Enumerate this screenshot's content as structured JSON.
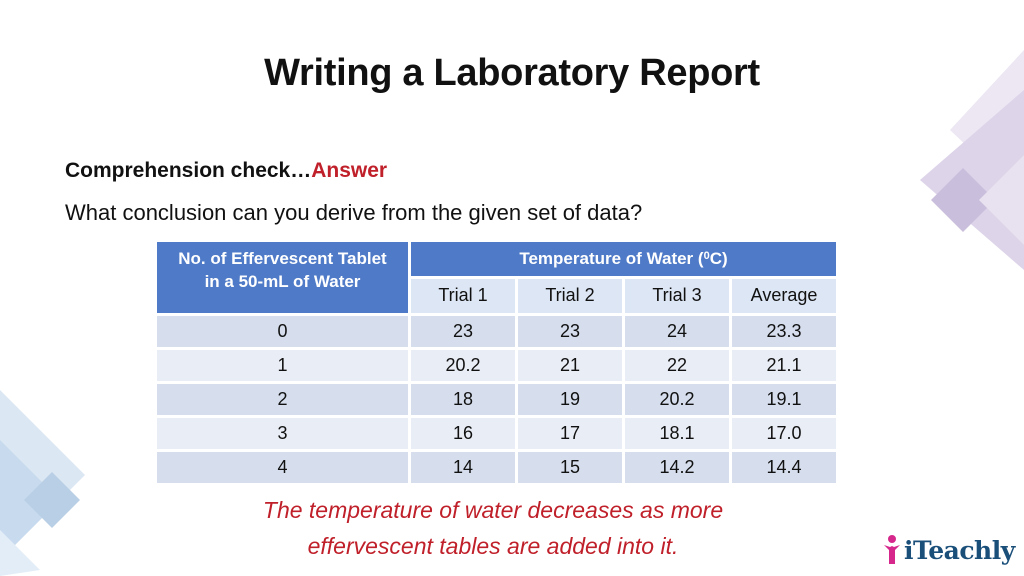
{
  "title": "Writing a Laboratory Report",
  "comprehension": {
    "prefix": "Comprehension check…",
    "answer": "Answer"
  },
  "question": "What conclusion can you derive from the given set of data?",
  "table": {
    "col1_header_line1": "No. of Effervescent Tablet",
    "col1_header_line2": "in a 50-mL of Water",
    "group_header_text": "Temperature of Water (",
    "group_header_sup": "0",
    "group_header_end": "C)",
    "subheaders": [
      "Trial 1",
      "Trial 2",
      "Trial 3",
      "Average"
    ],
    "rows": [
      [
        "0",
        "23",
        "23",
        "24",
        "23.3"
      ],
      [
        "1",
        "20.2",
        "21",
        "22",
        "21.1"
      ],
      [
        "2",
        "18",
        "19",
        "20.2",
        "19.1"
      ],
      [
        "3",
        "16",
        "17",
        "18.1",
        "17.0"
      ],
      [
        "4",
        "14",
        "15",
        "14.2",
        "14.4"
      ]
    ]
  },
  "conclusion": {
    "line1": "The temperature of water decreases as more",
    "line2": "effervescent tables are added into it."
  },
  "logo_text": "iTeachly",
  "colors": {
    "accent_red": "#c0202a",
    "header_blue": "#4f7ac7",
    "subheader_blue": "#dde6f4",
    "deco_purple": "#c9bedc",
    "deco_blue": "#b9cfe6",
    "logo_pink": "#d6288c",
    "logo_navy": "#1a4f7a"
  }
}
